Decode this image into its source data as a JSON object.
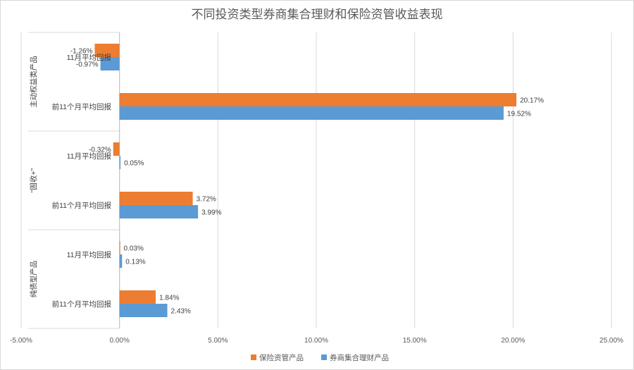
{
  "chart_data": {
    "type": "bar",
    "orientation": "horizontal",
    "title": "不同投资类型券商集合理财和保险资管收益表现",
    "xlim": [
      -0.05,
      0.25
    ],
    "x_ticks": [
      "-5.00%",
      "0.00%",
      "5.00%",
      "10.00%",
      "15.00%",
      "20.00%",
      "25.00%"
    ],
    "grid": true,
    "legend_position": "bottom",
    "groups": [
      {
        "name": "主动权益类产品",
        "categories": [
          "11月平均回报",
          "前11个月平均回报"
        ]
      },
      {
        "name": "\"固收+\"",
        "categories": [
          "11月平均回报",
          "前11个月平均回报"
        ]
      },
      {
        "name": "纯债型产品",
        "categories": [
          "11月平均回报",
          "前11个月平均回报"
        ]
      }
    ],
    "series": [
      {
        "name": "保险资管产品",
        "color": "#ED7D31",
        "values": [
          -0.0126,
          0.2017,
          -0.0032,
          0.0372,
          0.0003,
          0.0184
        ],
        "labels": [
          "-1.26%",
          "20.17%",
          "-0.32%",
          "3.72%",
          "0.03%",
          "1.84%"
        ]
      },
      {
        "name": "券商集合理财产品",
        "color": "#5B9BD5",
        "values": [
          -0.0097,
          0.1952,
          0.0005,
          0.0399,
          0.0013,
          0.0243
        ],
        "labels": [
          "-0.97%",
          "19.52%",
          "0.05%",
          "3.99%",
          "0.13%",
          "2.43%"
        ]
      }
    ]
  }
}
